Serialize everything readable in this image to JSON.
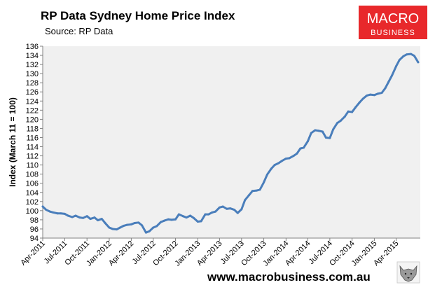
{
  "chart_data": {
    "type": "line",
    "title": "RP Data Sydney Home Price Index",
    "subtitle": "Source: RP Data",
    "ylabel": "Index (March 11 = 100)",
    "xlabel": "",
    "ylim": [
      94,
      136
    ],
    "yticks": [
      94,
      96,
      98,
      100,
      102,
      104,
      106,
      108,
      110,
      112,
      114,
      116,
      118,
      120,
      122,
      124,
      126,
      128,
      130,
      132,
      134,
      136
    ],
    "xlim": [
      "2011-04-01",
      "2015-07-10"
    ],
    "xtick_labels": [
      "Apr-2011",
      "Jul-2011",
      "Oct-2011",
      "Jan-2012",
      "Apr-2012",
      "Jul-2012",
      "Oct-2012",
      "Jan-2013",
      "Apr-2013",
      "Jul-2013",
      "Oct-2013",
      "Jan-2014",
      "Apr-2014",
      "Jul-2014",
      "Oct-2014",
      "Jan-2015",
      "Apr-2015"
    ],
    "xtick_dates": [
      "2011-04-01",
      "2011-07-01",
      "2011-10-01",
      "2012-01-01",
      "2012-04-01",
      "2012-07-01",
      "2012-10-01",
      "2013-01-01",
      "2013-04-01",
      "2013-07-01",
      "2013-10-01",
      "2014-01-01",
      "2014-04-01",
      "2014-07-01",
      "2014-10-01",
      "2015-01-01",
      "2015-04-01"
    ],
    "grid": false,
    "series": [
      {
        "color": "#4a7ebb",
        "points": [
          [
            "2011-04-01",
            100.9
          ],
          [
            "2011-04-15",
            100.2
          ],
          [
            "2011-05-01",
            99.8
          ],
          [
            "2011-05-15",
            99.6
          ],
          [
            "2011-06-01",
            99.4
          ],
          [
            "2011-06-15",
            99.4
          ],
          [
            "2011-07-01",
            99.3
          ],
          [
            "2011-07-15",
            98.9
          ],
          [
            "2011-08-01",
            98.6
          ],
          [
            "2011-08-15",
            98.9
          ],
          [
            "2011-09-01",
            98.5
          ],
          [
            "2011-09-15",
            98.4
          ],
          [
            "2011-10-01",
            98.8
          ],
          [
            "2011-10-15",
            98.2
          ],
          [
            "2011-11-01",
            98.5
          ],
          [
            "2011-11-15",
            97.9
          ],
          [
            "2011-12-01",
            98.2
          ],
          [
            "2011-12-15",
            97.3
          ],
          [
            "2012-01-01",
            96.3
          ],
          [
            "2012-01-15",
            96.0
          ],
          [
            "2012-02-01",
            95.9
          ],
          [
            "2012-02-15",
            96.3
          ],
          [
            "2012-03-01",
            96.7
          ],
          [
            "2012-03-15",
            96.9
          ],
          [
            "2012-04-01",
            97.0
          ],
          [
            "2012-04-15",
            97.3
          ],
          [
            "2012-05-01",
            97.4
          ],
          [
            "2012-05-15",
            96.8
          ],
          [
            "2012-06-01",
            95.2
          ],
          [
            "2012-06-15",
            95.5
          ],
          [
            "2012-07-01",
            96.3
          ],
          [
            "2012-07-15",
            96.6
          ],
          [
            "2012-08-01",
            97.5
          ],
          [
            "2012-08-15",
            97.8
          ],
          [
            "2012-09-01",
            98.1
          ],
          [
            "2012-09-15",
            98.0
          ],
          [
            "2012-10-01",
            98.1
          ],
          [
            "2012-10-15",
            99.2
          ],
          [
            "2012-11-01",
            98.8
          ],
          [
            "2012-11-15",
            98.5
          ],
          [
            "2012-12-01",
            98.9
          ],
          [
            "2012-12-15",
            98.4
          ],
          [
            "2013-01-01",
            97.6
          ],
          [
            "2013-01-15",
            97.7
          ],
          [
            "2013-02-01",
            99.2
          ],
          [
            "2013-02-15",
            99.2
          ],
          [
            "2013-03-01",
            99.6
          ],
          [
            "2013-03-15",
            99.8
          ],
          [
            "2013-04-01",
            100.7
          ],
          [
            "2013-04-15",
            100.9
          ],
          [
            "2013-05-01",
            100.4
          ],
          [
            "2013-05-15",
            100.5
          ],
          [
            "2013-06-01",
            100.2
          ],
          [
            "2013-06-15",
            99.5
          ],
          [
            "2013-07-01",
            100.3
          ],
          [
            "2013-07-15",
            102.3
          ],
          [
            "2013-08-01",
            103.4
          ],
          [
            "2013-08-15",
            104.3
          ],
          [
            "2013-09-01",
            104.4
          ],
          [
            "2013-09-15",
            104.6
          ],
          [
            "2013-10-01",
            106.2
          ],
          [
            "2013-10-15",
            107.9
          ],
          [
            "2013-11-01",
            109.2
          ],
          [
            "2013-11-15",
            110.0
          ],
          [
            "2013-12-01",
            110.4
          ],
          [
            "2013-12-15",
            110.9
          ],
          [
            "2014-01-01",
            111.4
          ],
          [
            "2014-01-15",
            111.5
          ],
          [
            "2014-02-01",
            112.0
          ],
          [
            "2014-02-15",
            112.5
          ],
          [
            "2014-03-01",
            113.6
          ],
          [
            "2014-03-15",
            113.8
          ],
          [
            "2014-04-01",
            115.2
          ],
          [
            "2014-04-15",
            117.0
          ],
          [
            "2014-05-01",
            117.6
          ],
          [
            "2014-05-15",
            117.5
          ],
          [
            "2014-06-01",
            117.3
          ],
          [
            "2014-06-15",
            116.0
          ],
          [
            "2014-07-01",
            115.9
          ],
          [
            "2014-07-15",
            117.8
          ],
          [
            "2014-08-01",
            119.2
          ],
          [
            "2014-08-15",
            119.7
          ],
          [
            "2014-09-01",
            120.6
          ],
          [
            "2014-09-15",
            121.7
          ],
          [
            "2014-10-01",
            121.6
          ],
          [
            "2014-10-15",
            122.6
          ],
          [
            "2014-11-01",
            123.7
          ],
          [
            "2014-11-15",
            124.5
          ],
          [
            "2014-12-01",
            125.2
          ],
          [
            "2014-12-15",
            125.4
          ],
          [
            "2015-01-01",
            125.3
          ],
          [
            "2015-01-15",
            125.6
          ],
          [
            "2015-02-01",
            125.8
          ],
          [
            "2015-02-15",
            126.8
          ],
          [
            "2015-03-01",
            128.2
          ],
          [
            "2015-03-15",
            129.6
          ],
          [
            "2015-04-01",
            131.6
          ],
          [
            "2015-04-15",
            133.0
          ],
          [
            "2015-05-01",
            133.8
          ],
          [
            "2015-05-15",
            134.2
          ],
          [
            "2015-06-01",
            134.3
          ],
          [
            "2015-06-15",
            133.9
          ],
          [
            "2015-07-01",
            132.5
          ]
        ]
      }
    ]
  },
  "branding": {
    "logo_line1": "MACRO",
    "logo_line2": "BUSINESS",
    "logo_color": "#e8282b",
    "footer_url": "www.macrobusiness.com.au",
    "corner_icon": "wolf-head-icon"
  },
  "colors": {
    "plot_background": "#f0f0f0",
    "line": "#4a7ebb"
  }
}
